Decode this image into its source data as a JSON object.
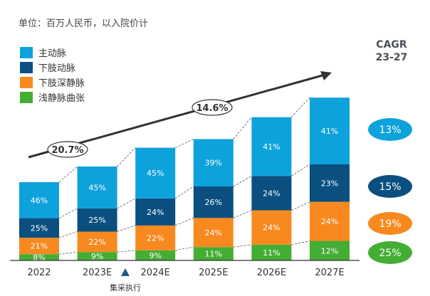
{
  "unit_note": "单位：百万人民币，以入院价计",
  "cagr_title": "CAGR",
  "cagr_period": "23-27",
  "annotation": "集采执行",
  "chart_data": {
    "type": "bar",
    "stacked": true,
    "categories": [
      "2022",
      "2023E",
      "2024E",
      "2025E",
      "2026E",
      "2027E"
    ],
    "relative_total_index": [
      100,
      120,
      144,
      155,
      183,
      208
    ],
    "series": [
      {
        "name": "浅静脉曲张",
        "color": "#44ad34",
        "labels": [
          "8%",
          "9%",
          "9%",
          "11%",
          "11%",
          "12%"
        ],
        "values": [
          8,
          9,
          9,
          11,
          11,
          12
        ],
        "cagr": "25%"
      },
      {
        "name": "下肢深静脉",
        "color": "#f7891f",
        "labels": [
          "21%",
          "22%",
          "22%",
          "24%",
          "24%",
          "24%"
        ],
        "values": [
          21,
          22,
          22,
          24,
          24,
          24
        ],
        "cagr": "19%"
      },
      {
        "name": "下肢动脉",
        "color": "#0a4f7f",
        "labels": [
          "25%",
          "25%",
          "24%",
          "26%",
          "24%",
          "23%"
        ],
        "values": [
          25,
          25,
          24,
          26,
          24,
          23
        ],
        "cagr": "15%"
      },
      {
        "name": "主动脉",
        "color": "#0ea2dc",
        "labels": [
          "46%",
          "45%",
          "45%",
          "39%",
          "41%",
          "41%"
        ],
        "values": [
          46,
          45,
          45,
          39,
          41,
          41
        ],
        "cagr": "13%"
      }
    ],
    "growth_arrows": [
      {
        "label": "20.7%"
      },
      {
        "label": "14.6%"
      }
    ]
  }
}
